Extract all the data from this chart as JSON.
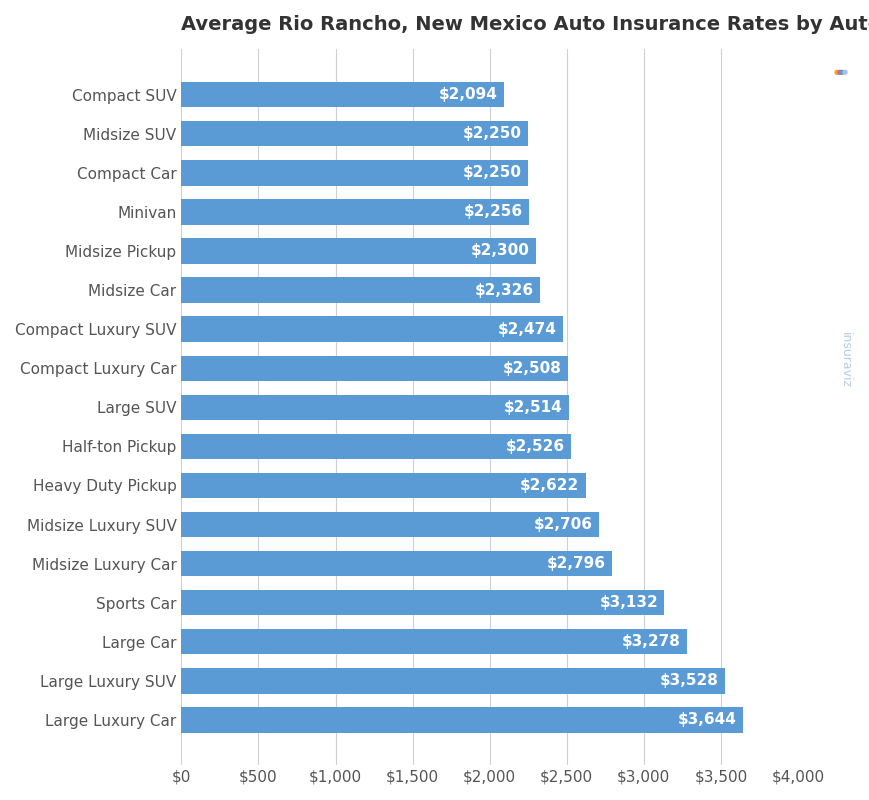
{
  "title": "Average Rio Rancho, New Mexico Auto Insurance Rates by Automotive Segment",
  "categories": [
    "Large Luxury Car",
    "Large Luxury SUV",
    "Large Car",
    "Sports Car",
    "Midsize Luxury Car",
    "Midsize Luxury SUV",
    "Heavy Duty Pickup",
    "Half-ton Pickup",
    "Large SUV",
    "Compact Luxury Car",
    "Compact Luxury SUV",
    "Midsize Car",
    "Midsize Pickup",
    "Minivan",
    "Compact Car",
    "Midsize SUV",
    "Compact SUV"
  ],
  "values": [
    3644,
    3528,
    3278,
    3132,
    2796,
    2706,
    2622,
    2526,
    2514,
    2508,
    2474,
    2326,
    2300,
    2256,
    2250,
    2250,
    2094
  ],
  "bar_color": "#5b9bd5",
  "label_color": "#ffffff",
  "background_color": "#ffffff",
  "grid_color": "#d0d0d0",
  "title_color": "#333333",
  "axis_label_color": "#555555",
  "xlim": [
    0,
    4000
  ],
  "xticks": [
    0,
    500,
    1000,
    1500,
    2000,
    2500,
    3000,
    3500,
    4000
  ],
  "title_fontsize": 14,
  "label_fontsize": 11,
  "tick_fontsize": 11
}
